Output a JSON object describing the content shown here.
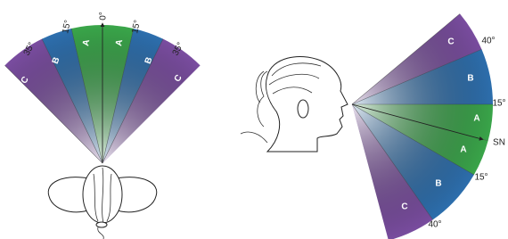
{
  "left_view": {
    "angle_labels": [
      "0°",
      "15°",
      "15°",
      "35°",
      "35°"
    ],
    "zones": [
      "A",
      "A",
      "B",
      "B",
      "C",
      "C"
    ]
  },
  "right_view": {
    "angle_labels": [
      "40°",
      "15°",
      "15°",
      "40°"
    ],
    "axis_label": "SN",
    "zones": [
      "C",
      "B",
      "A",
      "A",
      "B",
      "C"
    ]
  }
}
